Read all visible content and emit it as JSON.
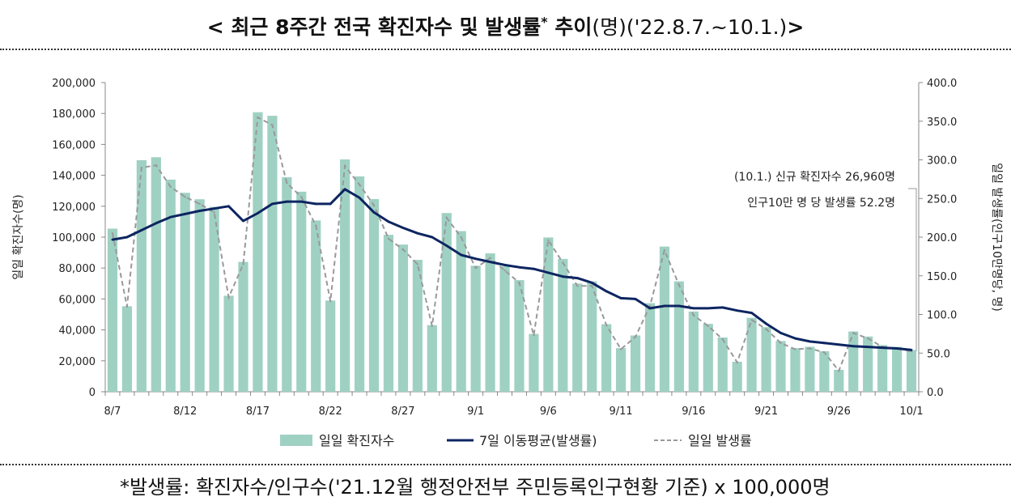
{
  "title": {
    "bracket_open": "< ",
    "main": "최근 8주간 전국 확진자수 및 발생률",
    "star": "*",
    "trend": " 추이",
    "unit": "(명)",
    "period": "('22.8.7.~10.1.)",
    "bracket_close": ">"
  },
  "footnote": "*발생률: 확진자수/인구수('21.12월 행정안전부 주민등록인구현황 기준) x 100,000명",
  "annotation": {
    "line1": "(10.1.) 신규 확진자수 26,960명",
    "line2": "인구10만 명 당 발생률 52.2명"
  },
  "chart_data": {
    "type": "bar",
    "x": [
      "8/7",
      "8/8",
      "8/9",
      "8/10",
      "8/11",
      "8/12",
      "8/13",
      "8/14",
      "8/15",
      "8/16",
      "8/17",
      "8/18",
      "8/19",
      "8/20",
      "8/21",
      "8/22",
      "8/23",
      "8/24",
      "8/25",
      "8/26",
      "8/27",
      "8/28",
      "8/29",
      "8/30",
      "8/31",
      "9/1",
      "9/2",
      "9/3",
      "9/4",
      "9/5",
      "9/6",
      "9/7",
      "9/8",
      "9/9",
      "9/10",
      "9/11",
      "9/12",
      "9/13",
      "9/14",
      "9/15",
      "9/16",
      "9/17",
      "9/18",
      "9/19",
      "9/20",
      "9/21",
      "9/22",
      "9/23",
      "9/24",
      "9/25",
      "9/26",
      "9/27",
      "9/28",
      "9/29",
      "9/30",
      "10/1"
    ],
    "x_tick_labels": [
      "8/7",
      "8/12",
      "8/17",
      "8/22",
      "8/27",
      "9/1",
      "9/6",
      "9/11",
      "9/16",
      "9/21",
      "9/26",
      "10/1"
    ],
    "y_left_label": "일일 확진자수(명)",
    "y_right_label": "일일 발생률(인구10만명당, 명)",
    "y_left_lim": [
      0,
      200000
    ],
    "y_right_lim": [
      0,
      400
    ],
    "y_left_ticks": [
      "0",
      "20,000",
      "40,000",
      "60,000",
      "80,000",
      "100,000",
      "120,000",
      "140,000",
      "160,000",
      "180,000",
      "200,000"
    ],
    "y_right_ticks": [
      "0.0",
      "50.0",
      "100.0",
      "150.0",
      "200.0",
      "250.0",
      "300.0",
      "350.0",
      "400.0"
    ],
    "grid": false,
    "legend_position": "bottom",
    "legend": [
      "일일 확진자수",
      "7일 이동평균(발생률)",
      "일일 발생률"
    ],
    "series": [
      {
        "name": "일일 확진자수",
        "type": "bar",
        "axis": "left",
        "color": "#9fd1c3",
        "values": [
          105500,
          55300,
          149800,
          151700,
          137200,
          128700,
          124500,
          119600,
          62100,
          84000,
          180800,
          178500,
          138800,
          129400,
          110800,
          59000,
          150300,
          139300,
          124600,
          101500,
          95200,
          85300,
          43100,
          115600,
          103900,
          81500,
          89500,
          81100,
          72200,
          37400,
          99800,
          85900,
          70000,
          71400,
          43700,
          28200,
          36400,
          57300,
          93900,
          71400,
          51900,
          43900,
          35100,
          19400,
          47800,
          41800,
          32800,
          28200,
          29100,
          26200,
          14200,
          39000,
          35700,
          30200,
          29000,
          26960
        ]
      },
      {
        "name": "7일 이동평균(발생률)",
        "type": "line",
        "axis": "right",
        "color": "#0d2561",
        "values": [
          196.8,
          200,
          209,
          218,
          226,
          230,
          234,
          237,
          240,
          221,
          231,
          243,
          246,
          246,
          243,
          243,
          262,
          251,
          232,
          220,
          212,
          205,
          200,
          189,
          177,
          172,
          168,
          164,
          161,
          159,
          154,
          149,
          147,
          141,
          130,
          121,
          120,
          108,
          111,
          111,
          108,
          108,
          109,
          105,
          102,
          88,
          76,
          69,
          65,
          63,
          61,
          59,
          58,
          57,
          56,
          54
        ]
      },
      {
        "name": "일일 발생률",
        "type": "line-dashed",
        "axis": "right",
        "color": "#999999",
        "values": [
          205,
          110,
          290,
          293,
          265,
          252,
          243,
          232,
          122,
          165,
          355,
          345,
          270,
          252,
          215,
          117,
          292,
          268,
          241,
          198,
          184,
          165,
          85,
          225,
          200,
          160,
          173,
          157,
          141,
          73,
          196,
          167,
          137,
          137,
          86,
          55,
          71,
          111,
          183,
          138,
          99,
          85,
          68,
          38,
          93,
          81,
          63,
          55,
          56,
          51,
          27,
          76,
          69,
          58,
          56,
          52.2
        ]
      }
    ]
  }
}
